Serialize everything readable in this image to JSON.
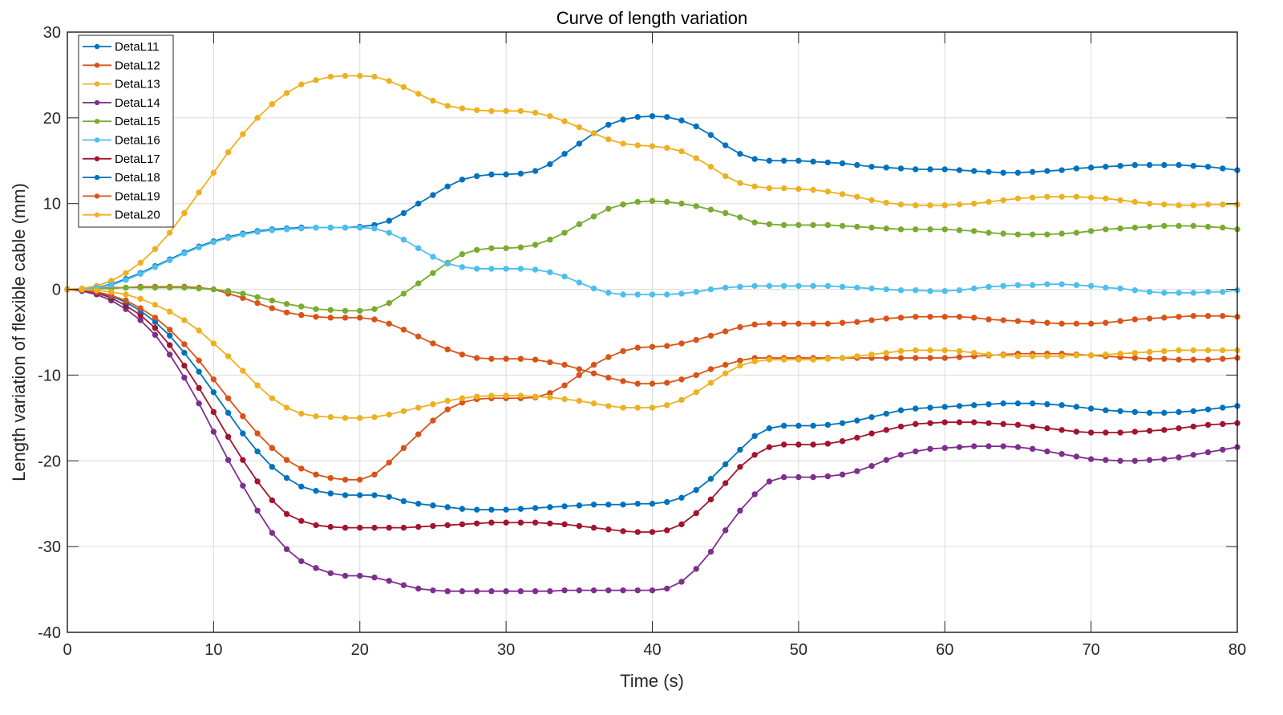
{
  "chart_data": {
    "type": "line",
    "title": "Curve of length variation",
    "xlabel": "Time (s)",
    "ylabel": "Length variation of flexible cable (mm)",
    "xlim": [
      0,
      80
    ],
    "ylim": [
      -40,
      30
    ],
    "xticks": [
      0,
      10,
      20,
      30,
      40,
      50,
      60,
      70,
      80
    ],
    "yticks": [
      -40,
      -30,
      -20,
      -10,
      0,
      10,
      20,
      30
    ],
    "grid": true,
    "legend_position": "top-left",
    "marker": "asterisk-dot",
    "x": [
      0,
      1,
      2,
      3,
      4,
      5,
      6,
      7,
      8,
      9,
      10,
      11,
      12,
      13,
      14,
      15,
      16,
      17,
      18,
      19,
      20,
      21,
      22,
      23,
      24,
      25,
      26,
      27,
      28,
      29,
      30,
      31,
      32,
      33,
      34,
      35,
      36,
      37,
      38,
      39,
      40,
      41,
      42,
      43,
      44,
      45,
      46,
      47,
      48,
      49,
      50,
      51,
      52,
      53,
      54,
      55,
      56,
      57,
      58,
      59,
      60,
      61,
      62,
      63,
      64,
      65,
      66,
      67,
      68,
      69,
      70,
      71,
      72,
      73,
      74,
      75,
      76,
      77,
      78,
      79,
      80
    ],
    "series": [
      {
        "name": "DetaL11",
        "color": "#0072BD",
        "values": [
          0,
          0,
          0.2,
          0.6,
          1.2,
          1.9,
          2.7,
          3.5,
          4.3,
          5.0,
          5.6,
          6.1,
          6.5,
          6.8,
          7.0,
          7.1,
          7.2,
          7.2,
          7.2,
          7.2,
          7.3,
          7.5,
          8.0,
          8.9,
          10.0,
          11.0,
          12.0,
          12.8,
          13.2,
          13.4,
          13.4,
          13.5,
          13.8,
          14.6,
          15.8,
          17.0,
          18.2,
          19.2,
          19.8,
          20.1,
          20.2,
          20.1,
          19.7,
          19.0,
          18.0,
          16.8,
          15.8,
          15.2,
          15.0,
          15.0,
          15.0,
          14.9,
          14.8,
          14.7,
          14.5,
          14.3,
          14.2,
          14.1,
          14.0,
          14.0,
          14.0,
          13.9,
          13.8,
          13.7,
          13.6,
          13.6,
          13.7,
          13.8,
          13.9,
          14.1,
          14.2,
          14.3,
          14.4,
          14.5,
          14.5,
          14.5,
          14.5,
          14.4,
          14.3,
          14.1,
          13.9
        ]
      },
      {
        "name": "DetaL12",
        "color": "#D95319",
        "values": [
          0,
          0,
          0.1,
          0.2,
          0.2,
          0.3,
          0.3,
          0.3,
          0.3,
          0.2,
          0,
          -0.5,
          -1.0,
          -1.6,
          -2.2,
          -2.7,
          -3.0,
          -3.2,
          -3.3,
          -3.3,
          -3.3,
          -3.5,
          -4.0,
          -4.7,
          -5.5,
          -6.3,
          -7.0,
          -7.6,
          -8.0,
          -8.1,
          -8.1,
          -8.1,
          -8.2,
          -8.5,
          -8.8,
          -9.3,
          -9.8,
          -10.3,
          -10.7,
          -11.0,
          -11.0,
          -10.9,
          -10.5,
          -10.0,
          -9.3,
          -8.8,
          -8.3,
          -8.0,
          -8.0,
          -8.0,
          -8.0,
          -8.0,
          -8.0,
          -8.0,
          -8.0,
          -8.0,
          -8.0,
          -8.0,
          -8.0,
          -8.0,
          -8.0,
          -7.9,
          -7.8,
          -7.7,
          -7.6,
          -7.5,
          -7.5,
          -7.5,
          -7.5,
          -7.6,
          -7.7,
          -7.8,
          -7.9,
          -8.0,
          -8.1,
          -8.1,
          -8.2,
          -8.2,
          -8.2,
          -8.1,
          -8.0
        ]
      },
      {
        "name": "DetaL13",
        "color": "#EDB120",
        "values": [
          0,
          0.1,
          0.4,
          1.0,
          1.9,
          3.1,
          4.7,
          6.6,
          8.9,
          11.3,
          13.6,
          16.0,
          18.1,
          20.0,
          21.6,
          22.9,
          23.9,
          24.4,
          24.8,
          24.9,
          24.9,
          24.8,
          24.3,
          23.6,
          22.8,
          22.0,
          21.4,
          21.1,
          20.9,
          20.8,
          20.8,
          20.8,
          20.6,
          20.2,
          19.6,
          18.9,
          18.2,
          17.5,
          17.0,
          16.8,
          16.7,
          16.5,
          16.1,
          15.3,
          14.3,
          13.2,
          12.4,
          12.0,
          11.8,
          11.8,
          11.7,
          11.6,
          11.4,
          11.1,
          10.8,
          10.4,
          10.1,
          9.9,
          9.8,
          9.8,
          9.8,
          9.9,
          10.0,
          10.2,
          10.4,
          10.6,
          10.7,
          10.8,
          10.8,
          10.8,
          10.7,
          10.6,
          10.4,
          10.2,
          10.0,
          9.9,
          9.8,
          9.8,
          9.9,
          9.9,
          9.9
        ]
      },
      {
        "name": "DetaL14",
        "color": "#7E2F8E",
        "values": [
          0,
          -0.2,
          -0.6,
          -1.3,
          -2.3,
          -3.6,
          -5.3,
          -7.6,
          -10.3,
          -13.3,
          -16.6,
          -19.9,
          -22.9,
          -25.8,
          -28.4,
          -30.3,
          -31.7,
          -32.5,
          -33.1,
          -33.4,
          -33.4,
          -33.6,
          -34.0,
          -34.5,
          -34.9,
          -35.1,
          -35.2,
          -35.2,
          -35.2,
          -35.2,
          -35.2,
          -35.2,
          -35.2,
          -35.2,
          -35.1,
          -35.1,
          -35.1,
          -35.1,
          -35.1,
          -35.1,
          -35.1,
          -34.9,
          -34.1,
          -32.6,
          -30.6,
          -28.1,
          -25.8,
          -23.9,
          -22.4,
          -21.9,
          -21.9,
          -21.9,
          -21.8,
          -21.6,
          -21.2,
          -20.6,
          -19.9,
          -19.3,
          -18.9,
          -18.6,
          -18.5,
          -18.4,
          -18.3,
          -18.3,
          -18.3,
          -18.4,
          -18.6,
          -18.9,
          -19.2,
          -19.5,
          -19.8,
          -19.9,
          -20.0,
          -20.0,
          -19.9,
          -19.8,
          -19.6,
          -19.3,
          -19.0,
          -18.7,
          -18.4
        ]
      },
      {
        "name": "DetaL15",
        "color": "#77AC30",
        "values": [
          0,
          0,
          0.1,
          0.1,
          0.2,
          0.2,
          0.2,
          0.2,
          0.2,
          0.1,
          0,
          -0.2,
          -0.5,
          -0.9,
          -1.3,
          -1.7,
          -2.0,
          -2.3,
          -2.4,
          -2.5,
          -2.5,
          -2.3,
          -1.6,
          -0.5,
          0.7,
          1.9,
          3.1,
          4.1,
          4.6,
          4.8,
          4.8,
          4.9,
          5.2,
          5.8,
          6.6,
          7.6,
          8.5,
          9.4,
          9.9,
          10.2,
          10.3,
          10.2,
          10.0,
          9.7,
          9.3,
          8.9,
          8.4,
          7.8,
          7.6,
          7.5,
          7.5,
          7.5,
          7.5,
          7.4,
          7.3,
          7.2,
          7.1,
          7.0,
          7.0,
          7.0,
          7.0,
          6.9,
          6.8,
          6.6,
          6.5,
          6.4,
          6.4,
          6.4,
          6.5,
          6.6,
          6.8,
          7.0,
          7.1,
          7.2,
          7.3,
          7.4,
          7.4,
          7.4,
          7.3,
          7.2,
          7.0
        ]
      },
      {
        "name": "DetaL16",
        "color": "#4DBEEE",
        "values": [
          0,
          0,
          0.2,
          0.5,
          1.1,
          1.8,
          2.6,
          3.4,
          4.2,
          4.9,
          5.5,
          6.0,
          6.4,
          6.7,
          6.9,
          7.0,
          7.1,
          7.2,
          7.2,
          7.2,
          7.2,
          7.1,
          6.6,
          5.8,
          4.8,
          3.8,
          3.0,
          2.6,
          2.4,
          2.4,
          2.4,
          2.4,
          2.3,
          2.0,
          1.5,
          0.8,
          0.1,
          -0.4,
          -0.6,
          -0.6,
          -0.6,
          -0.6,
          -0.5,
          -0.3,
          0,
          0.2,
          0.3,
          0.4,
          0.4,
          0.4,
          0.4,
          0.4,
          0.4,
          0.3,
          0.2,
          0.1,
          0,
          -0.1,
          -0.1,
          -0.2,
          -0.2,
          -0.1,
          0.1,
          0.3,
          0.4,
          0.5,
          0.5,
          0.6,
          0.6,
          0.5,
          0.4,
          0.2,
          0.1,
          -0.1,
          -0.3,
          -0.4,
          -0.4,
          -0.4,
          -0.3,
          -0.3,
          -0.1
        ]
      },
      {
        "name": "DetaL17",
        "color": "#A2142F",
        "values": [
          0,
          -0.1,
          -0.4,
          -1.0,
          -1.9,
          -3.0,
          -4.5,
          -6.5,
          -8.9,
          -11.5,
          -14.3,
          -17.2,
          -19.9,
          -22.4,
          -24.6,
          -26.2,
          -27.0,
          -27.5,
          -27.7,
          -27.8,
          -27.8,
          -27.8,
          -27.8,
          -27.8,
          -27.7,
          -27.6,
          -27.5,
          -27.4,
          -27.3,
          -27.2,
          -27.2,
          -27.2,
          -27.2,
          -27.3,
          -27.4,
          -27.6,
          -27.8,
          -28.0,
          -28.2,
          -28.3,
          -28.3,
          -28.1,
          -27.4,
          -26.1,
          -24.5,
          -22.6,
          -20.7,
          -19.3,
          -18.4,
          -18.1,
          -18.1,
          -18.1,
          -18.0,
          -17.7,
          -17.3,
          -16.8,
          -16.4,
          -16.0,
          -15.7,
          -15.6,
          -15.5,
          -15.5,
          -15.5,
          -15.6,
          -15.7,
          -15.8,
          -16.0,
          -16.2,
          -16.4,
          -16.6,
          -16.7,
          -16.7,
          -16.7,
          -16.6,
          -16.5,
          -16.4,
          -16.2,
          -16.0,
          -15.8,
          -15.7,
          -15.6
        ]
      },
      {
        "name": "DetaL18",
        "color": "#0072BD",
        "values": [
          0,
          -0.1,
          -0.3,
          -0.8,
          -1.5,
          -2.5,
          -3.8,
          -5.4,
          -7.4,
          -9.6,
          -12.0,
          -14.4,
          -16.8,
          -18.9,
          -20.7,
          -22.0,
          -23.0,
          -23.5,
          -23.8,
          -24.0,
          -24.0,
          -24.0,
          -24.2,
          -24.7,
          -25.0,
          -25.2,
          -25.4,
          -25.6,
          -25.7,
          -25.7,
          -25.7,
          -25.6,
          -25.5,
          -25.4,
          -25.3,
          -25.2,
          -25.1,
          -25.1,
          -25.1,
          -25.0,
          -25.0,
          -24.8,
          -24.3,
          -23.4,
          -22.1,
          -20.4,
          -18.7,
          -17.1,
          -16.2,
          -15.9,
          -15.9,
          -15.9,
          -15.8,
          -15.6,
          -15.3,
          -14.9,
          -14.5,
          -14.1,
          -13.9,
          -13.8,
          -13.7,
          -13.6,
          -13.5,
          -13.4,
          -13.3,
          -13.3,
          -13.3,
          -13.4,
          -13.5,
          -13.7,
          -13.9,
          -14.1,
          -14.2,
          -14.3,
          -14.4,
          -14.4,
          -14.3,
          -14.2,
          -14.0,
          -13.8,
          -13.6
        ]
      },
      {
        "name": "DetaL19",
        "color": "#D95319",
        "values": [
          0,
          -0.1,
          -0.3,
          -0.7,
          -1.3,
          -2.2,
          -3.3,
          -4.7,
          -6.4,
          -8.3,
          -10.5,
          -12.7,
          -14.8,
          -16.8,
          -18.5,
          -19.9,
          -20.9,
          -21.6,
          -22.0,
          -22.2,
          -22.2,
          -21.6,
          -20.2,
          -18.5,
          -16.9,
          -15.3,
          -14.0,
          -13.2,
          -12.8,
          -12.7,
          -12.7,
          -12.7,
          -12.6,
          -12.1,
          -11.2,
          -10.0,
          -8.8,
          -7.9,
          -7.2,
          -6.8,
          -6.7,
          -6.6,
          -6.3,
          -5.9,
          -5.4,
          -4.9,
          -4.4,
          -4.1,
          -4.0,
          -4.0,
          -4.0,
          -4.0,
          -4.0,
          -3.9,
          -3.8,
          -3.6,
          -3.4,
          -3.3,
          -3.2,
          -3.2,
          -3.2,
          -3.2,
          -3.3,
          -3.5,
          -3.6,
          -3.7,
          -3.8,
          -3.9,
          -4.0,
          -4.0,
          -4.0,
          -3.9,
          -3.7,
          -3.5,
          -3.4,
          -3.3,
          -3.2,
          -3.1,
          -3.1,
          -3.1,
          -3.2
        ]
      },
      {
        "name": "DetaL20",
        "color": "#EDB120",
        "values": [
          0,
          0,
          -0.1,
          -0.3,
          -0.6,
          -1.1,
          -1.8,
          -2.6,
          -3.6,
          -4.8,
          -6.3,
          -7.8,
          -9.5,
          -11.2,
          -12.7,
          -13.8,
          -14.5,
          -14.8,
          -14.9,
          -15.0,
          -15.0,
          -14.9,
          -14.6,
          -14.2,
          -13.8,
          -13.4,
          -13.0,
          -12.7,
          -12.5,
          -12.4,
          -12.4,
          -12.4,
          -12.5,
          -12.6,
          -12.8,
          -13.0,
          -13.3,
          -13.6,
          -13.8,
          -13.8,
          -13.8,
          -13.5,
          -12.9,
          -12.0,
          -10.9,
          -9.8,
          -8.9,
          -8.4,
          -8.2,
          -8.2,
          -8.2,
          -8.2,
          -8.1,
          -8.0,
          -7.8,
          -7.6,
          -7.4,
          -7.2,
          -7.1,
          -7.1,
          -7.1,
          -7.2,
          -7.4,
          -7.6,
          -7.7,
          -7.8,
          -7.8,
          -7.8,
          -7.8,
          -7.7,
          -7.7,
          -7.6,
          -7.5,
          -7.4,
          -7.3,
          -7.2,
          -7.1,
          -7.1,
          -7.1,
          -7.1,
          -7.1
        ]
      }
    ]
  }
}
